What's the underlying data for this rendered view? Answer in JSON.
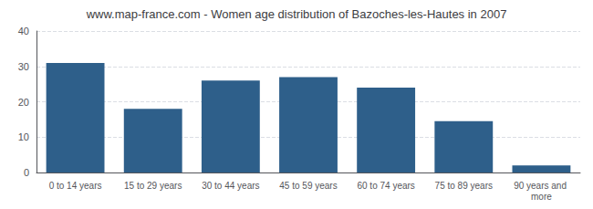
{
  "chart_data": {
    "type": "bar",
    "title": "www.map-france.com - Women age distribution of Bazoches-les-Hautes in 2007",
    "categories": [
      "0 to 14 years",
      "15 to 29 years",
      "30 to 44 years",
      "45 to 59 years",
      "60 to 74 years",
      "75 to 89 years",
      "90 years and more"
    ],
    "values": [
      31,
      18,
      26,
      27,
      24,
      14.5,
      2
    ],
    "color": "#2e5f8a",
    "ylim": [
      0,
      40
    ],
    "yticks": [
      0,
      10,
      20,
      30,
      40
    ],
    "grid": true
  }
}
